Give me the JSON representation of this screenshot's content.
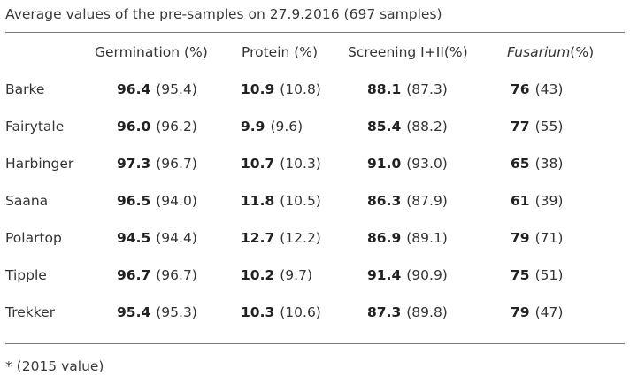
{
  "title": "Average values of the pre-samples on 27.9.2016 (697 samples)",
  "headers": {
    "germination": "Germination (%)",
    "protein": "Protein (%)",
    "screening": "Screening I+II(%)",
    "fusarium_italic": "Fusarium",
    "fusarium_suffix": "(%)"
  },
  "rows": [
    {
      "name": "Barke",
      "germ": "96.4",
      "germ_prev": "(95.4)",
      "prot": "10.9",
      "prot_prev": "(10.8)",
      "scr": "88.1",
      "scr_prev": "(87.3)",
      "fus": "76",
      "fus_prev": "(43)"
    },
    {
      "name": "Fairytale",
      "germ": "96.0",
      "germ_prev": "(96.2)",
      "prot": "9.9",
      "prot_prev": "(9.6)",
      "scr": "85.4",
      "scr_prev": "(88.2)",
      "fus": "77",
      "fus_prev": "(55)"
    },
    {
      "name": "Harbinger",
      "germ": "97.3",
      "germ_prev": "(96.7)",
      "prot": "10.7",
      "prot_prev": "(10.3)",
      "scr": "91.0",
      "scr_prev": "(93.0)",
      "fus": "65",
      "fus_prev": "(38)"
    },
    {
      "name": "Saana",
      "germ": "96.5",
      "germ_prev": "(94.0)",
      "prot": "11.8",
      "prot_prev": "(10.5)",
      "scr": "86.3",
      "scr_prev": "(87.9)",
      "fus": "61",
      "fus_prev": "(39)"
    },
    {
      "name": "Polartop",
      "germ": "94.5",
      "germ_prev": "(94.4)",
      "prot": "12.7",
      "prot_prev": "(12.2)",
      "scr": "86.9",
      "scr_prev": "(89.1)",
      "fus": "79",
      "fus_prev": "(71)"
    },
    {
      "name": "Tipple",
      "germ": "96.7",
      "germ_prev": "(96.7)",
      "prot": "10.2",
      "prot_prev": "(9.7)",
      "scr": "91.4",
      "scr_prev": "(90.9)",
      "fus": "75",
      "fus_prev": "(51)"
    },
    {
      "name": "Trekker",
      "germ": "95.4",
      "germ_prev": "(95.3)",
      "prot": "10.3",
      "prot_prev": "(10.6)",
      "scr": "87.3",
      "scr_prev": "(89.8)",
      "fus": "79",
      "fus_prev": "(47)"
    }
  ],
  "footnote": "* (2015 value)"
}
